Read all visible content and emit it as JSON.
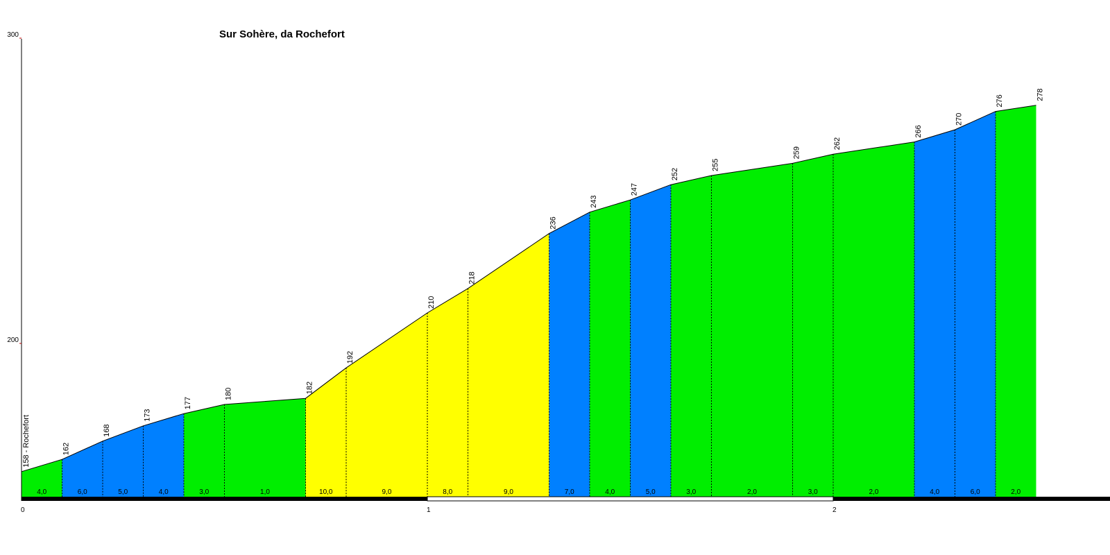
{
  "chart_data": {
    "type": "area",
    "title": "Sur Sohère, da Rochefort",
    "xlabel": "",
    "ylabel": "",
    "xlim": [
      0,
      2.6
    ],
    "ylim": [
      150,
      300
    ],
    "y_ticks": [
      "200",
      "300"
    ],
    "x_ticks": [
      "0",
      "1",
      "2"
    ],
    "start_label": "158 - Rochefort",
    "points": [
      {
        "x": 0.0,
        "y": 158,
        "label": ""
      },
      {
        "x": 0.1,
        "y": 162,
        "label": "162"
      },
      {
        "x": 0.2,
        "y": 168,
        "label": "168"
      },
      {
        "x": 0.3,
        "y": 173,
        "label": "173"
      },
      {
        "x": 0.4,
        "y": 177,
        "label": "177"
      },
      {
        "x": 0.5,
        "y": 180,
        "label": "180"
      },
      {
        "x": 0.7,
        "y": 182,
        "label": "182"
      },
      {
        "x": 0.8,
        "y": 192,
        "label": "192"
      },
      {
        "x": 1.0,
        "y": 210,
        "label": "210"
      },
      {
        "x": 1.1,
        "y": 218,
        "label": "218"
      },
      {
        "x": 1.3,
        "y": 236,
        "label": "236"
      },
      {
        "x": 1.4,
        "y": 243,
        "label": "243"
      },
      {
        "x": 1.5,
        "y": 247,
        "label": "247"
      },
      {
        "x": 1.6,
        "y": 252,
        "label": "252"
      },
      {
        "x": 1.7,
        "y": 255,
        "label": "255"
      },
      {
        "x": 1.9,
        "y": 259,
        "label": "259"
      },
      {
        "x": 2.0,
        "y": 262,
        "label": "262"
      },
      {
        "x": 2.2,
        "y": 266,
        "label": "266"
      },
      {
        "x": 2.3,
        "y": 270,
        "label": "270"
      },
      {
        "x": 2.4,
        "y": 276,
        "label": "276"
      },
      {
        "x": 2.5,
        "y": 278,
        "label": "278"
      }
    ],
    "segments": [
      {
        "grade": "4,0",
        "color": "#00ee00"
      },
      {
        "grade": "6,0",
        "color": "#0080ff"
      },
      {
        "grade": "5,0",
        "color": "#0080ff"
      },
      {
        "grade": "4,0",
        "color": "#0080ff"
      },
      {
        "grade": "3,0",
        "color": "#00ee00"
      },
      {
        "grade": "1,0",
        "color": "#00ee00"
      },
      {
        "grade": "10,0",
        "color": "#ffff00"
      },
      {
        "grade": "9,0",
        "color": "#ffff00"
      },
      {
        "grade": "8,0",
        "color": "#ffff00"
      },
      {
        "grade": "9,0",
        "color": "#ffff00"
      },
      {
        "grade": "7,0",
        "color": "#0080ff"
      },
      {
        "grade": "4,0",
        "color": "#00ee00"
      },
      {
        "grade": "5,0",
        "color": "#0080ff"
      },
      {
        "grade": "3,0",
        "color": "#00ee00"
      },
      {
        "grade": "2,0",
        "color": "#00ee00"
      },
      {
        "grade": "3,0",
        "color": "#00ee00"
      },
      {
        "grade": "2,0",
        "color": "#00ee00"
      },
      {
        "grade": "4,0",
        "color": "#0080ff"
      },
      {
        "grade": "6,0",
        "color": "#0080ff"
      },
      {
        "grade": "2,0",
        "color": "#00ee00"
      }
    ],
    "grid": false,
    "legend": "none"
  }
}
